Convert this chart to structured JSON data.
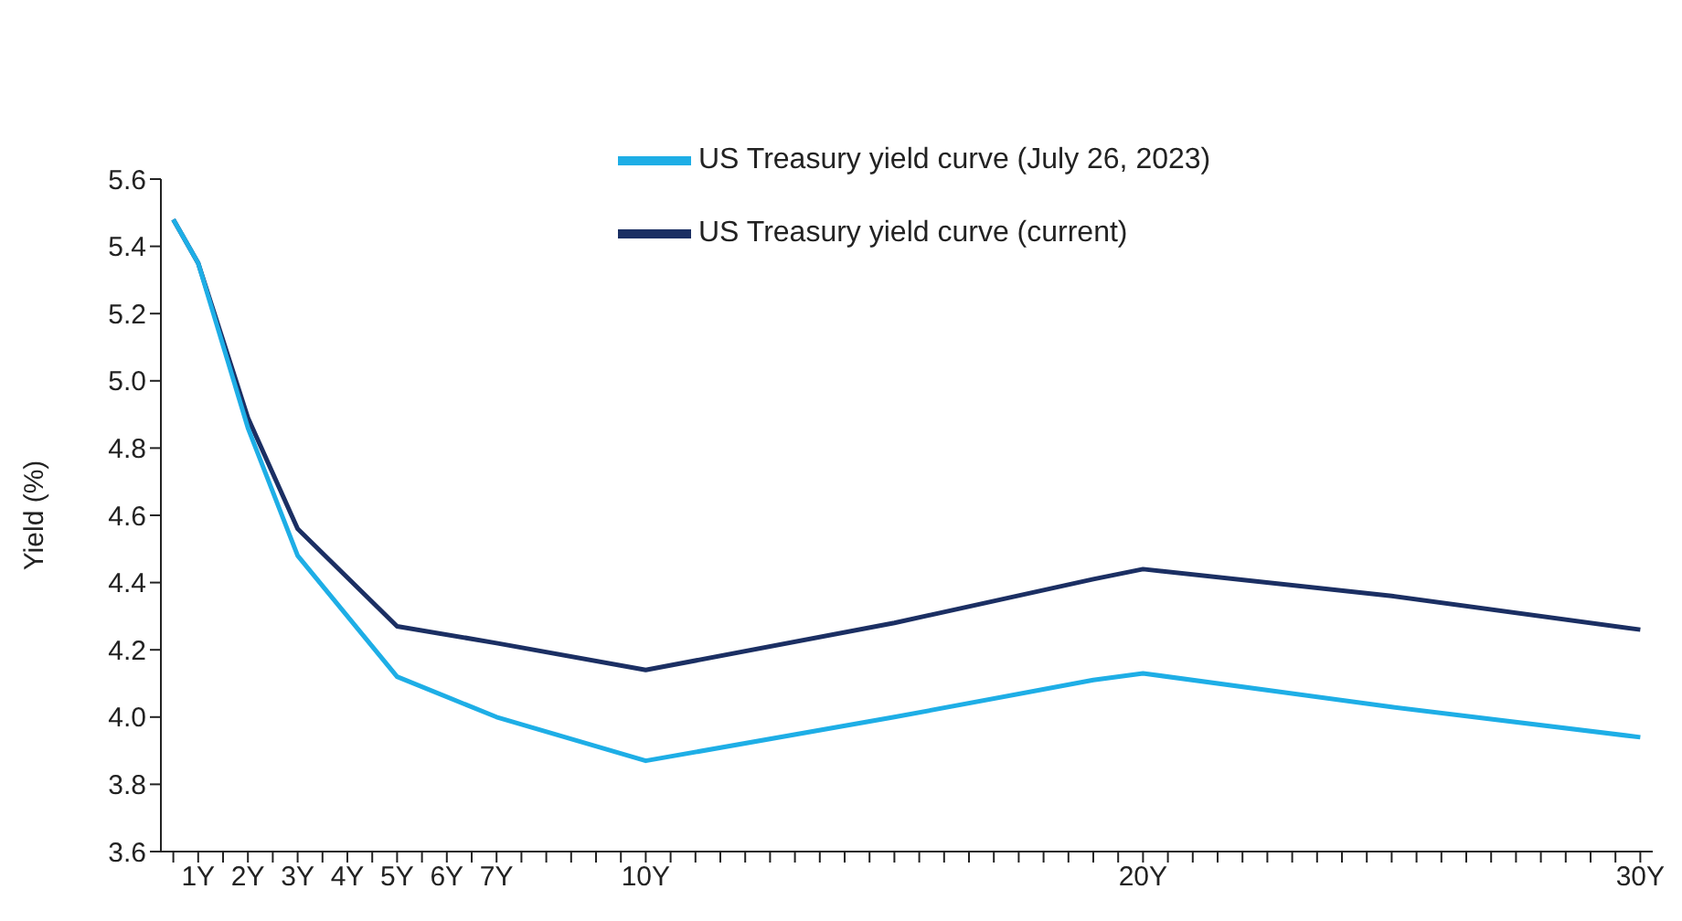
{
  "chart_data": {
    "type": "line",
    "ylabel": "Yield (%)",
    "x": [
      0.5,
      1,
      2,
      3,
      5,
      7,
      10,
      15,
      19,
      20,
      25,
      30
    ],
    "series": [
      {
        "name": "US Treasury yield curve (current)",
        "color": "#1b2f63",
        "values": [
          5.48,
          5.35,
          4.89,
          4.56,
          4.27,
          4.22,
          4.14,
          4.28,
          4.41,
          4.44,
          4.36,
          4.26
        ]
      },
      {
        "name": "US Treasury yield curve (July 26, 2023)",
        "color": "#1eaee6",
        "values": [
          5.48,
          5.35,
          4.86,
          4.48,
          4.12,
          4.0,
          3.87,
          4.0,
          4.11,
          4.13,
          4.03,
          3.94
        ]
      }
    ],
    "xlim": [
      0.25,
      30.25
    ],
    "xticks": [
      {
        "value": 0.5,
        "label": null
      },
      {
        "value": 1,
        "label": "1Y"
      },
      {
        "value": 1.5,
        "label": null
      },
      {
        "value": 2,
        "label": "2Y"
      },
      {
        "value": 2.5,
        "label": null
      },
      {
        "value": 3,
        "label": "3Y"
      },
      {
        "value": 3.5,
        "label": null
      },
      {
        "value": 4,
        "label": "4Y"
      },
      {
        "value": 4.5,
        "label": null
      },
      {
        "value": 5,
        "label": "5Y"
      },
      {
        "value": 5.5,
        "label": null
      },
      {
        "value": 6,
        "label": "6Y"
      },
      {
        "value": 6.5,
        "label": null
      },
      {
        "value": 7,
        "label": "7Y"
      },
      {
        "value": 7.5,
        "label": null
      },
      {
        "value": 8,
        "label": null
      },
      {
        "value": 8.5,
        "label": null
      },
      {
        "value": 9,
        "label": null
      },
      {
        "value": 9.5,
        "label": null
      },
      {
        "value": 10,
        "label": "10Y"
      },
      {
        "value": 10.5,
        "label": null
      },
      {
        "value": 11,
        "label": null
      },
      {
        "value": 11.5,
        "label": null
      },
      {
        "value": 12,
        "label": null
      },
      {
        "value": 12.5,
        "label": null
      },
      {
        "value": 13,
        "label": null
      },
      {
        "value": 13.5,
        "label": null
      },
      {
        "value": 14,
        "label": null
      },
      {
        "value": 14.5,
        "label": null
      },
      {
        "value": 15,
        "label": null
      },
      {
        "value": 15.5,
        "label": null
      },
      {
        "value": 16,
        "label": null
      },
      {
        "value": 16.5,
        "label": null
      },
      {
        "value": 17,
        "label": null
      },
      {
        "value": 17.5,
        "label": null
      },
      {
        "value": 18,
        "label": null
      },
      {
        "value": 18.5,
        "label": null
      },
      {
        "value": 19,
        "label": null
      },
      {
        "value": 19.5,
        "label": null
      },
      {
        "value": 20,
        "label": "20Y"
      },
      {
        "value": 20.5,
        "label": null
      },
      {
        "value": 21,
        "label": null
      },
      {
        "value": 21.5,
        "label": null
      },
      {
        "value": 22,
        "label": null
      },
      {
        "value": 22.5,
        "label": null
      },
      {
        "value": 23,
        "label": null
      },
      {
        "value": 23.5,
        "label": null
      },
      {
        "value": 24,
        "label": null
      },
      {
        "value": 24.5,
        "label": null
      },
      {
        "value": 25,
        "label": null
      },
      {
        "value": 25.5,
        "label": null
      },
      {
        "value": 26,
        "label": null
      },
      {
        "value": 26.5,
        "label": null
      },
      {
        "value": 27,
        "label": null
      },
      {
        "value": 27.5,
        "label": null
      },
      {
        "value": 28,
        "label": null
      },
      {
        "value": 28.5,
        "label": null
      },
      {
        "value": 29,
        "label": null
      },
      {
        "value": 29.5,
        "label": null
      },
      {
        "value": 30,
        "label": "30Y"
      }
    ],
    "ylim": [
      3.6,
      5.6
    ],
    "yticks": [
      3.6,
      3.8,
      {
        "value": 4,
        "label": "4.0"
      },
      4.2,
      4.4,
      4.6,
      4.8,
      {
        "value": 5,
        "label": "5.0"
      },
      5.2,
      5.4,
      5.6
    ],
    "grid": false,
    "legend": "top",
    "marker": "none",
    "line_style": "solid"
  }
}
